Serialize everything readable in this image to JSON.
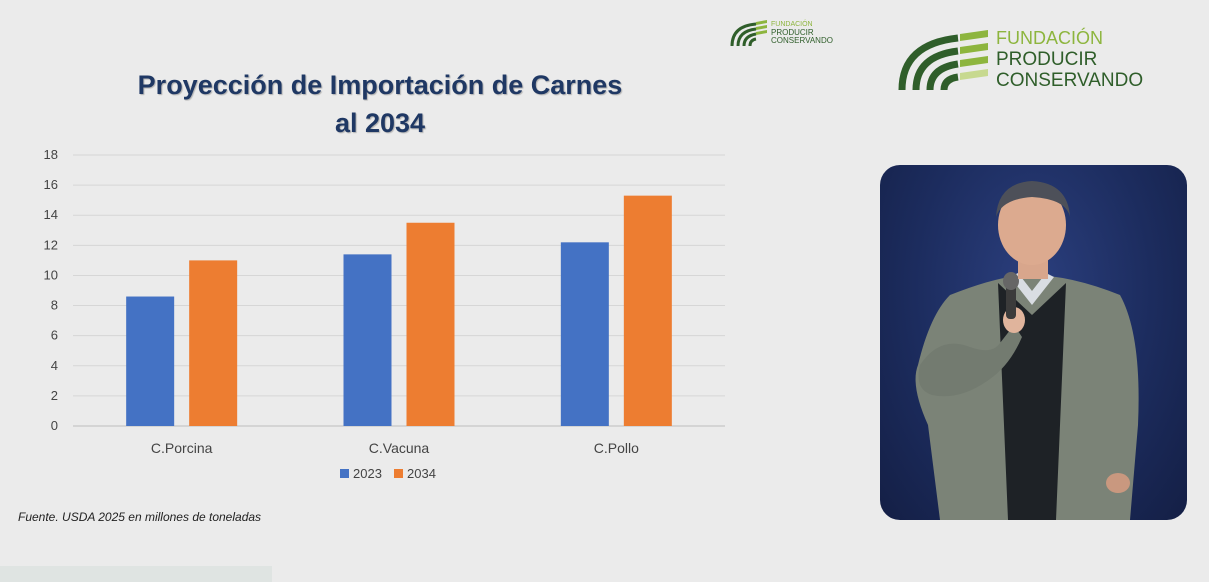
{
  "title": {
    "line1": "Proyección de Importación de Carnes",
    "line2": "al 2034"
  },
  "source_note": "Fuente.  USDA 2025 en millones de toneladas",
  "logos": {
    "line1": "FUNDACIÓN",
    "line2": "PRODUCIR",
    "line3": "CONSERVANDO"
  },
  "colors": {
    "series_2023": "#4472c4",
    "series_2034": "#ed7d31",
    "title": "#1f3864",
    "logo_dark_green": "#2f5e2a",
    "logo_light_green": "#8db53e"
  },
  "chart_data": {
    "type": "bar",
    "title": "Proyección de Importación de Carnes al 2034",
    "categories": [
      "C.Porcina",
      "C.Vacuna",
      "C.Pollo"
    ],
    "series": [
      {
        "name": "2023",
        "values": [
          8.6,
          11.4,
          12.2
        ]
      },
      {
        "name": "2034",
        "values": [
          11.0,
          13.5,
          15.3
        ]
      }
    ],
    "xlabel": "",
    "ylabel": "",
    "ylim": [
      0,
      18
    ],
    "yticks": [
      0,
      2,
      4,
      6,
      8,
      10,
      12,
      14,
      16,
      18
    ],
    "grid": true,
    "legend_position": "bottom"
  }
}
